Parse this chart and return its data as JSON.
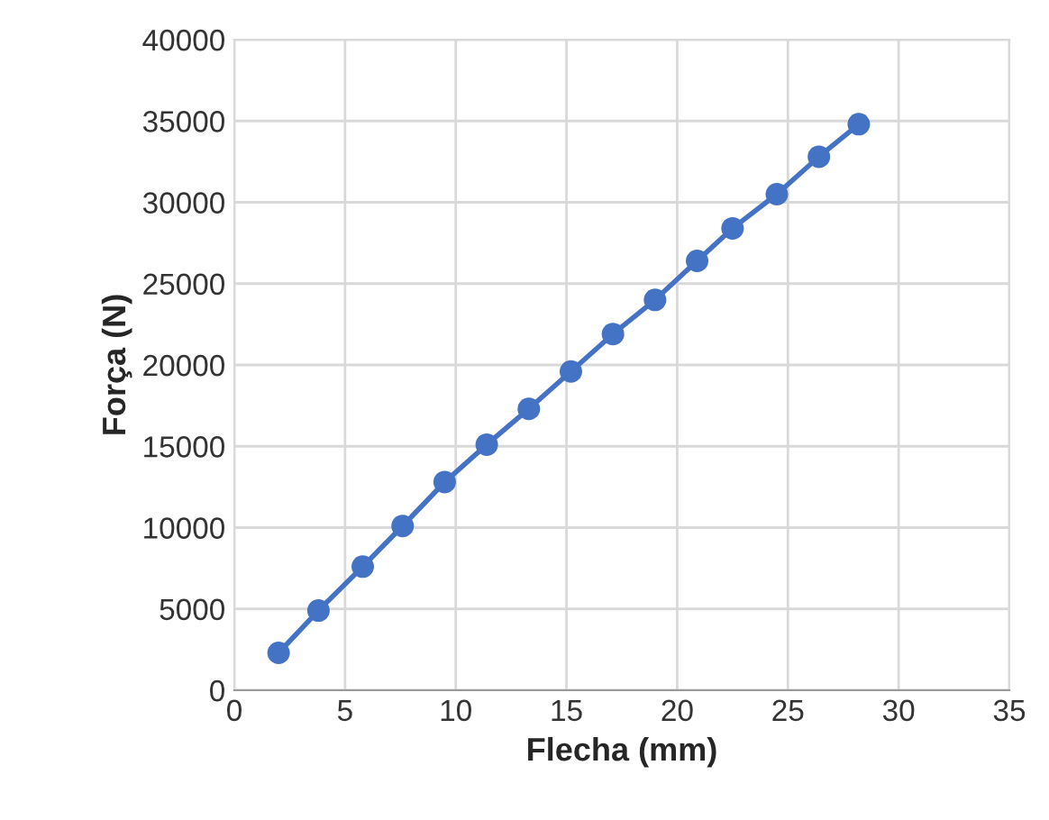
{
  "chart_data": {
    "type": "line",
    "xlabel": "Flecha (mm)",
    "ylabel": "Força (N)",
    "series": [
      {
        "color": "#4472c4",
        "x": [
          2.0,
          3.8,
          5.8,
          7.6,
          9.5,
          11.4,
          13.3,
          15.2,
          17.1,
          19.0,
          20.9,
          22.5,
          24.5,
          26.4,
          28.2
        ],
        "values": [
          2300,
          4900,
          7600,
          10100,
          12800,
          15100,
          17300,
          19600,
          21900,
          24000,
          26400,
          28400,
          30500,
          32800,
          34800
        ]
      }
    ],
    "xlim": [
      0,
      35
    ],
    "xticks": [
      0,
      5,
      10,
      15,
      20,
      25,
      30,
      35
    ],
    "ylim": [
      0,
      40000
    ],
    "yticks": [
      0,
      5000,
      10000,
      15000,
      20000,
      25000,
      30000,
      35000,
      40000
    ],
    "grid": true,
    "marker": "circle",
    "line_style": "solid",
    "legend": false
  }
}
